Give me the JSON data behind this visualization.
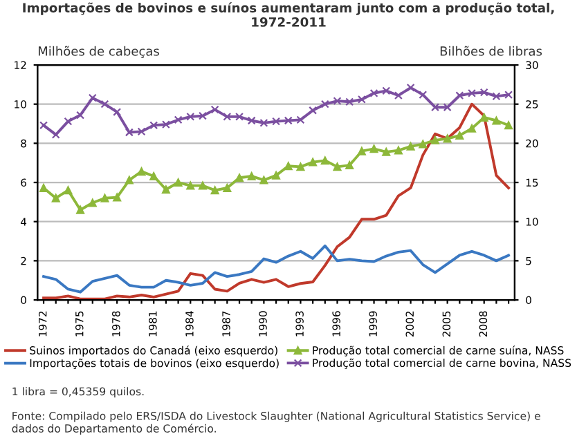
{
  "chart_data": {
    "type": "line",
    "title": "Importações de bovinos e suínos aumentaram junto com a produção total,\n1972-2011",
    "ylabel": "Milhões de cabeças",
    "y2label": "Bilhões de libras",
    "categories": [
      "1972",
      null,
      null,
      "1975",
      null,
      null,
      "1978",
      null,
      null,
      "1981",
      null,
      null,
      "1984",
      null,
      null,
      "1987",
      null,
      null,
      "1990",
      null,
      null,
      "1993",
      null,
      null,
      "1996",
      null,
      null,
      "1999",
      null,
      null,
      "2002",
      null,
      null,
      "2005",
      null,
      null,
      "2008",
      null,
      null
    ],
    "series": [
      {
        "name": "Suinos importados do Canadá (eixo esquerdo)",
        "color": "#c0392b",
        "marker": "none",
        "values": [
          0.1,
          0.1,
          0.2,
          0.05,
          0.05,
          0.05,
          0.2,
          0.15,
          0.25,
          0.15,
          0.3,
          0.45,
          1.35,
          1.25,
          0.55,
          0.45,
          0.85,
          1.05,
          0.9,
          1.05,
          0.68,
          0.84,
          0.92,
          1.76,
          2.72,
          3.2,
          4.12,
          4.12,
          4.32,
          5.32,
          5.72,
          7.4,
          8.48,
          8.24,
          8.8,
          10.0,
          9.4,
          6.36,
          5.72
        ]
      },
      {
        "name": "Importações totais de bovinos (eixo esquerdo)",
        "color": "#3a78c2",
        "marker": "none",
        "values": [
          1.2,
          1.05,
          0.55,
          0.4,
          0.95,
          1.1,
          1.25,
          0.75,
          0.65,
          0.65,
          1.0,
          0.9,
          0.75,
          0.85,
          1.4,
          1.2,
          1.3,
          1.45,
          2.1,
          1.92,
          2.24,
          2.48,
          2.12,
          2.76,
          2.0,
          2.08,
          2.0,
          1.96,
          2.24,
          2.44,
          2.52,
          1.8,
          1.4,
          1.84,
          2.28,
          2.48,
          2.28,
          2.0,
          2.28
        ]
      },
      {
        "name": "Produção total comercial de carne suína, NASS",
        "color": "#8db83a",
        "marker": "triangle",
        "axis": "y2",
        "values": [
          14.3,
          13.0,
          14.0,
          11.5,
          12.4,
          13.0,
          13.1,
          15.3,
          16.4,
          15.8,
          14.1,
          15.0,
          14.6,
          14.6,
          14.0,
          14.3,
          15.6,
          15.8,
          15.3,
          15.9,
          17.1,
          17.0,
          17.6,
          17.8,
          17.0,
          17.2,
          19.0,
          19.3,
          18.9,
          19.1,
          19.6,
          19.9,
          20.4,
          20.6,
          21.0,
          21.9,
          23.3,
          22.9,
          22.3
        ]
      },
      {
        "name": "Produção total comercial de carne bovina, NASS",
        "color": "#7b4fa0",
        "marker": "cross",
        "axis": "y2",
        "values": [
          22.3,
          21.1,
          22.8,
          23.6,
          25.8,
          25.0,
          24.0,
          21.4,
          21.5,
          22.3,
          22.4,
          23.0,
          23.4,
          23.5,
          24.3,
          23.4,
          23.4,
          22.9,
          22.6,
          22.8,
          22.9,
          23.0,
          24.2,
          25.0,
          25.4,
          25.3,
          25.6,
          26.4,
          26.7,
          26.1,
          27.1,
          26.2,
          24.6,
          24.6,
          26.1,
          26.4,
          26.5,
          26.0,
          26.2
        ]
      }
    ],
    "ylim": [
      0,
      12
    ],
    "yticks": [
      0,
      2,
      4,
      6,
      8,
      10,
      12
    ],
    "y2lim": [
      0,
      30
    ],
    "y2ticks": [
      0,
      5,
      10,
      15,
      20,
      25,
      30
    ],
    "grid": "y",
    "legend": "bottom",
    "line_style": "solid",
    "annotations": [
      "1 libra = 0,45359 quilos.",
      "Fonte: Compilado pelo ERS/ISDA do Livestock Slaughter (National Agricultural Statistics Service) e dados do Departamento de Comércio."
    ]
  }
}
